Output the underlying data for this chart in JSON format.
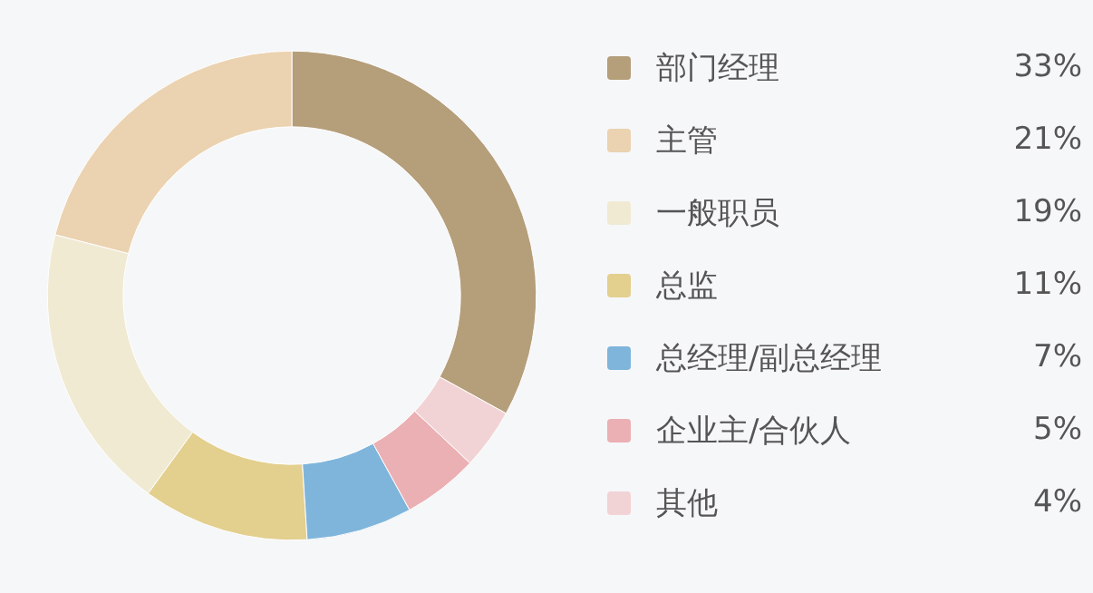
{
  "chart_data": {
    "type": "donut",
    "categories": [
      "部门经理",
      "主管",
      "一般职员",
      "总监",
      "总经理/副总经理",
      "企业主/合伙人",
      "其他"
    ],
    "values": [
      33,
      21,
      19,
      11,
      7,
      5,
      4
    ],
    "colors": [
      "#b59e7a",
      "#ebd2b0",
      "#f0ead3",
      "#e3cf8e",
      "#7fb5db",
      "#ebb0b3",
      "#f2d3d5"
    ],
    "value_labels": [
      "33%",
      "21%",
      "19%",
      "11%",
      "7%",
      "5%",
      "4%"
    ],
    "legend": "right"
  }
}
